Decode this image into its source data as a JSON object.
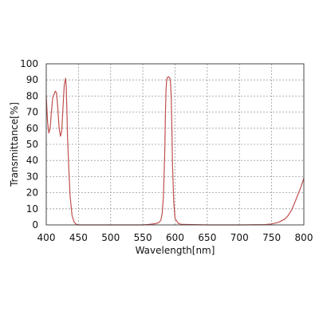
{
  "chart_data": {
    "type": "line",
    "title": "",
    "xlabel": "Wavelength[nm]",
    "ylabel": "Transmittance[%]",
    "xlim": [
      400,
      800
    ],
    "ylim": [
      0,
      100
    ],
    "xticks": [
      400,
      450,
      500,
      550,
      600,
      650,
      700,
      750,
      800
    ],
    "yticks": [
      0,
      10,
      20,
      30,
      40,
      50,
      60,
      70,
      80,
      90,
      100
    ],
    "grid": true,
    "line_color": "#c0504d",
    "series": [
      {
        "x": [
          400,
          402,
          404,
          406,
          408,
          410,
          412,
          414,
          416,
          418,
          420,
          422,
          424,
          426,
          428,
          430,
          431,
          432,
          433,
          435,
          437,
          440,
          443,
          446,
          448,
          450,
          460,
          500,
          550,
          560,
          570,
          575,
          578,
          580,
          582,
          584,
          585,
          586,
          587,
          588,
          590,
          592,
          593,
          594,
          595,
          596,
          598,
          600,
          605,
          610,
          650,
          700,
          740,
          750,
          760,
          770,
          775,
          780,
          785,
          790,
          795,
          800
        ],
        "y": [
          80,
          64,
          57,
          60,
          70,
          79,
          81,
          83,
          82,
          72,
          60,
          55,
          58,
          73,
          87,
          91,
          86,
          72,
          55,
          35,
          18,
          6,
          2,
          0.5,
          0.2,
          0,
          0,
          0,
          0,
          0.3,
          0.8,
          1.5,
          3,
          7,
          18,
          45,
          68,
          84,
          90,
          91.5,
          92,
          91,
          88,
          80,
          62,
          38,
          14,
          4,
          1,
          0.3,
          0,
          0,
          0.2,
          0.6,
          1.5,
          3.5,
          5.5,
          8.5,
          13,
          18,
          23,
          29
        ]
      }
    ]
  }
}
